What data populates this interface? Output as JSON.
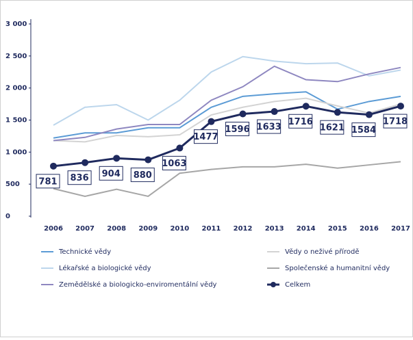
{
  "chart_data": {
    "type": "line",
    "x": [
      "2006",
      "2007",
      "2008",
      "2009",
      "2010",
      "2011",
      "2012",
      "2013",
      "2014",
      "2015",
      "2016",
      "2017"
    ],
    "ylim": [
      0,
      3000
    ],
    "yticks": [
      0,
      500,
      {
        "value": 1000,
        "label": "1 000"
      },
      {
        "value": 1500,
        "label": "1 500"
      },
      {
        "value": 2000,
        "label": "2 000"
      },
      {
        "value": 2500,
        "label": "2 500"
      },
      {
        "value": 3000,
        "label": "3 000"
      }
    ],
    "legend": "bottom",
    "series": [
      {
        "name": "Technické vědy",
        "color": "#5b9bd5",
        "values": [
          1220,
          1300,
          1300,
          1380,
          1380,
          1700,
          1870,
          1910,
          1940,
          1670,
          1790,
          1870
        ]
      },
      {
        "name": "Vědy o neživé přírodě",
        "color": "#d3d3d3",
        "values": [
          1180,
          1160,
          1260,
          1240,
          1270,
          1580,
          1700,
          1790,
          1840,
          1720,
          1610,
          1750
        ]
      },
      {
        "name": "Lékařské a biologické vědy",
        "color": "#bcd6ec",
        "values": [
          1420,
          1700,
          1740,
          1500,
          1810,
          2250,
          2490,
          2420,
          2380,
          2390,
          2190,
          2280
        ]
      },
      {
        "name": "Společenské a humanitní vědy",
        "color": "#a6a6a6",
        "values": [
          430,
          310,
          420,
          310,
          670,
          730,
          770,
          770,
          810,
          750,
          800,
          850
        ]
      },
      {
        "name": "Zemědělské a biologicko-enviromentální vědy",
        "color": "#8e87c0",
        "values": [
          1180,
          1230,
          1360,
          1430,
          1430,
          1810,
          2020,
          2340,
          2130,
          2100,
          2220,
          2320
        ]
      },
      {
        "name": "Celkem",
        "color": "#1f2a5e",
        "values": [
          781,
          836,
          904,
          880,
          1063,
          1477,
          1596,
          1633,
          1716,
          1621,
          1584,
          1718
        ],
        "markers": true
      }
    ]
  }
}
